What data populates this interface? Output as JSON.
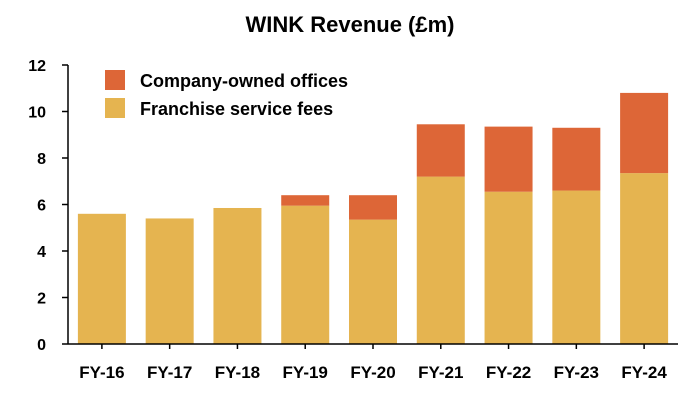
{
  "chart_data": {
    "type": "bar",
    "stacked": true,
    "title": "WINK Revenue (£m)",
    "xlabel": "",
    "ylabel": "",
    "ylim": [
      0,
      12
    ],
    "yticks": [
      0,
      2,
      4,
      6,
      8,
      10,
      12
    ],
    "categories": [
      "FY-16",
      "FY-17",
      "FY-18",
      "FY-19",
      "FY-20",
      "FY-21",
      "FY-22",
      "FY-23",
      "FY-24"
    ],
    "series": [
      {
        "name": "Franchise service fees",
        "color": "#E5B450",
        "values": [
          5.6,
          5.4,
          5.85,
          5.95,
          5.35,
          7.2,
          6.55,
          6.6,
          7.35
        ]
      },
      {
        "name": "Company-owned offices",
        "color": "#DD6637",
        "values": [
          0,
          0,
          0,
          0.45,
          1.05,
          2.25,
          2.8,
          2.7,
          3.45
        ]
      }
    ],
    "legend": {
      "position": "top-left",
      "order": [
        "Company-owned offices",
        "Franchise service fees"
      ]
    },
    "grid": false
  }
}
